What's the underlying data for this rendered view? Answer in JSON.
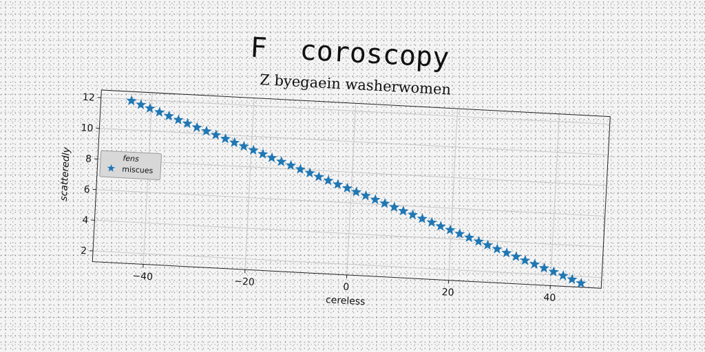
{
  "chart_data": {
    "type": "scatter",
    "suptitle": "F  coroscopy",
    "title": "Z byegaein washerwomen",
    "xlabel": "cereless",
    "ylabel": "scatteredly",
    "xlim": [
      -50,
      50
    ],
    "ylim": [
      1.3,
      12.5
    ],
    "xticks": [
      -40,
      -20,
      0,
      20,
      40
    ],
    "xtick_labels": [
      "−40",
      "−20",
      "0",
      "20",
      "40"
    ],
    "yticks": [
      2,
      4,
      6,
      8,
      10,
      12
    ],
    "ytick_labels": [
      "2",
      "4",
      "6",
      "8",
      "10",
      "12"
    ],
    "grid": true,
    "legend": {
      "title": "fens",
      "placement": "center-left",
      "entries": [
        "miscues"
      ]
    },
    "series": [
      {
        "name": "miscues",
        "marker": "star",
        "color": "#1f77b4",
        "x": [
          -44,
          -42.1,
          -40.3,
          -38.4,
          -36.5,
          -34.6,
          -32.8,
          -30.9,
          -29,
          -27.1,
          -25.2,
          -23.4,
          -21.5,
          -19.6,
          -17.7,
          -15.9,
          -14,
          -12.1,
          -10.2,
          -8.3,
          -6.5,
          -4.6,
          -2.7,
          -0.8,
          1,
          2.9,
          4.8,
          6.7,
          8.6,
          10.4,
          12.3,
          14.2,
          16.1,
          17.9,
          19.8,
          21.7,
          23.6,
          25.5,
          27.3,
          29.2,
          31.1,
          33,
          34.8,
          36.7,
          38.6,
          40.5,
          42.4,
          44.2,
          46
        ],
        "y": [
          11.9,
          11.68,
          11.47,
          11.25,
          11.04,
          10.82,
          10.61,
          10.39,
          10.18,
          9.96,
          9.75,
          9.53,
          9.32,
          9.1,
          8.88,
          8.67,
          8.45,
          8.24,
          8.02,
          7.81,
          7.59,
          7.38,
          7.16,
          6.95,
          6.73,
          6.52,
          6.3,
          6.08,
          5.87,
          5.65,
          5.44,
          5.22,
          5.01,
          4.79,
          4.58,
          4.36,
          4.15,
          3.93,
          3.72,
          3.5,
          3.28,
          3.07,
          2.85,
          2.64,
          2.42,
          2.21,
          1.99,
          1.78,
          1.56
        ]
      }
    ]
  }
}
